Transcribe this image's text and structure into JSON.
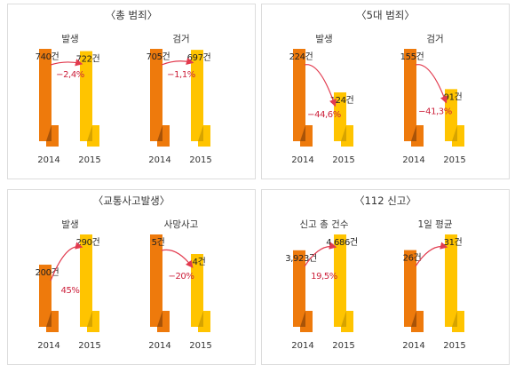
{
  "colors": {
    "bar_2014": "#ee7a0c",
    "bar_2014_fold": "#a85308",
    "bar_2015": "#ffc400",
    "bar_2015_fold": "#d6a300",
    "arrow": "#e23a4e",
    "change_text": "#cc1f3a"
  },
  "chart_data": [
    {
      "type": "bar",
      "title": "〈총 범죄〉",
      "groups": [
        {
          "label": "발생",
          "categories": [
            "2014",
            "2015"
          ],
          "values": [
            740,
            722
          ],
          "value_labels": [
            "740건",
            "722건"
          ],
          "change_label": "−2,4%"
        },
        {
          "label": "검거",
          "categories": [
            "2014",
            "2015"
          ],
          "values": [
            705,
            697
          ],
          "value_labels": [
            "705건",
            "697건"
          ],
          "change_label": "−1,1%"
        }
      ]
    },
    {
      "type": "bar",
      "title": "〈5대 범죄〉",
      "groups": [
        {
          "label": "발생",
          "categories": [
            "2014",
            "2015"
          ],
          "values": [
            224,
            124
          ],
          "value_labels": [
            "224건",
            "124건"
          ],
          "change_label": "−44,6%"
        },
        {
          "label": "검거",
          "categories": [
            "2014",
            "2015"
          ],
          "values": [
            155,
            91
          ],
          "value_labels": [
            "155건",
            "91건"
          ],
          "change_label": "−41,3%"
        }
      ]
    },
    {
      "type": "bar",
      "title": "〈교통사고발생〉",
      "groups": [
        {
          "label": "발생",
          "categories": [
            "2014",
            "2015"
          ],
          "values": [
            200,
            290
          ],
          "value_labels": [
            "200건",
            "290건"
          ],
          "change_label": "45%"
        },
        {
          "label": "사망사고",
          "categories": [
            "2014",
            "2015"
          ],
          "values": [
            5,
            4
          ],
          "value_labels": [
            "5건",
            "4건"
          ],
          "change_label": "−20%"
        }
      ]
    },
    {
      "type": "bar",
      "title": "〈112 신고〉",
      "groups": [
        {
          "label": "신고 총 건수",
          "categories": [
            "2014",
            "2015"
          ],
          "values": [
            3923,
            4686
          ],
          "value_labels": [
            "3,923건",
            "4,686건"
          ],
          "change_label": "19,5%"
        },
        {
          "label": "1일 평균",
          "categories": [
            "2014",
            "2015"
          ],
          "values": [
            26,
            31
          ],
          "value_labels": [
            "26건",
            "31건"
          ],
          "change_label": ""
        }
      ]
    }
  ]
}
